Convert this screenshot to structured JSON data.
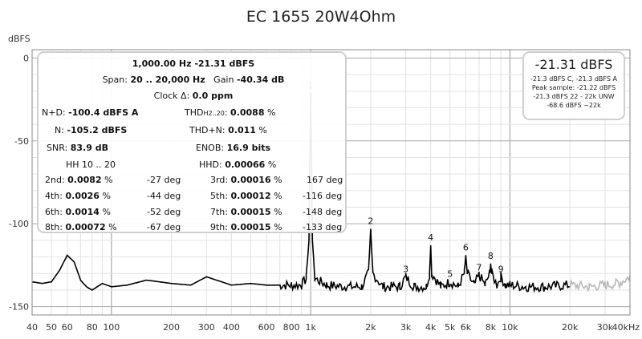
{
  "chart_data": {
    "type": "line",
    "title": "EC 1655 20W4Ohm",
    "ylabel": "dBFS",
    "xlabel": "",
    "x_scale": "log",
    "xlim": [
      40,
      40000
    ],
    "ylim": [
      -155,
      5
    ],
    "grid": true,
    "y_ticks": [
      0,
      -50,
      -100,
      -150
    ],
    "y_tick_labels": [
      "0",
      "-50",
      "-100",
      "-150"
    ],
    "x_ticks": [
      40,
      50,
      60,
      80,
      100,
      200,
      300,
      400,
      600,
      800,
      1000,
      2000,
      3000,
      4000,
      5000,
      6000,
      8000,
      10000,
      20000,
      30000,
      40000
    ],
    "x_tick_labels": [
      "40",
      "50",
      "60",
      "80",
      "100",
      "200",
      "300",
      "400",
      "600",
      "800",
      "1k",
      "2k",
      "3k",
      "4k",
      "5k",
      "6k",
      "8k",
      "10k",
      "20k",
      "30k",
      "40kHz"
    ],
    "series": [
      {
        "color": "#000000",
        "points": [
          [
            40,
            -135
          ],
          [
            45,
            -136
          ],
          [
            50,
            -135
          ],
          [
            55,
            -128
          ],
          [
            60,
            -119
          ],
          [
            65,
            -123
          ],
          [
            70,
            -134
          ],
          [
            75,
            -138
          ],
          [
            80,
            -140
          ],
          [
            90,
            -136
          ],
          [
            100,
            -138
          ],
          [
            120,
            -137
          ],
          [
            150,
            -134
          ],
          [
            200,
            -136
          ],
          [
            250,
            -137
          ],
          [
            300,
            -132
          ],
          [
            400,
            -137
          ],
          [
            500,
            -136
          ],
          [
            600,
            -137
          ],
          [
            700,
            -137
          ],
          [
            800,
            -137
          ],
          [
            900,
            -137
          ],
          [
            950,
            -133
          ],
          [
            980,
            -110
          ],
          [
            990,
            -60
          ],
          [
            1000,
            -21.31
          ],
          [
            1010,
            -60
          ],
          [
            1020,
            -110
          ],
          [
            1050,
            -133
          ],
          [
            1200,
            -137
          ],
          [
            1500,
            -138
          ],
          [
            1800,
            -138
          ],
          [
            1950,
            -130
          ],
          [
            2000,
            -103
          ],
          [
            2050,
            -130
          ],
          [
            2300,
            -138
          ],
          [
            2800,
            -138
          ],
          [
            3000,
            -132
          ],
          [
            3300,
            -138
          ],
          [
            3800,
            -138
          ],
          [
            3950,
            -130
          ],
          [
            4000,
            -113
          ],
          [
            4050,
            -130
          ],
          [
            4500,
            -138
          ],
          [
            5000,
            -135
          ],
          [
            5500,
            -138
          ],
          [
            5900,
            -130
          ],
          [
            6000,
            -119
          ],
          [
            6100,
            -130
          ],
          [
            6600,
            -137
          ],
          [
            7000,
            -131
          ],
          [
            7500,
            -137
          ],
          [
            7900,
            -130
          ],
          [
            8000,
            -124
          ],
          [
            8100,
            -130
          ],
          [
            8600,
            -137
          ],
          [
            9000,
            -132
          ],
          [
            9500,
            -137
          ],
          [
            10000,
            -137
          ],
          [
            12000,
            -138
          ],
          [
            15000,
            -138
          ],
          [
            20000,
            -137
          ]
        ]
      },
      {
        "color": "#b8b8b8",
        "points": [
          [
            20000,
            -137
          ],
          [
            25000,
            -138
          ],
          [
            30000,
            -137
          ],
          [
            35000,
            -136
          ],
          [
            40000,
            -132
          ]
        ]
      }
    ],
    "harmonics": [
      {
        "label": "1",
        "freq": 1000,
        "level": -21.31
      },
      {
        "label": "2",
        "freq": 2000,
        "level": -103
      },
      {
        "label": "3",
        "freq": 3000,
        "level": -132
      },
      {
        "label": "4",
        "freq": 4000,
        "level": -113
      },
      {
        "label": "5",
        "freq": 5000,
        "level": -135
      },
      {
        "label": "6",
        "freq": 6000,
        "level": -119
      },
      {
        "label": "7",
        "freq": 7000,
        "level": -131
      },
      {
        "label": "8",
        "freq": 8000,
        "level": -124
      },
      {
        "label": "9",
        "freq": 9000,
        "level": -132
      }
    ]
  },
  "stats": {
    "line1": "1,000.00 Hz  -21.31 dBFS",
    "span_label": "Span: ",
    "span_value": "20 .. 20,000 Hz",
    "gain_label": "Gain ",
    "gain_value": "-40.34 dB",
    "clock_label": "Clock Δ: ",
    "clock_value": "0.0 ppm",
    "nd_label": "N+D: ",
    "nd_value": "-100.4 dBFS A",
    "thd_label": "THD",
    "thd_sub": "H2..20",
    "thd_colon": ": ",
    "thd_value": "0.0088",
    "thd_unit": " %",
    "n_label": "N: ",
    "n_value": "-105.2 dBFS",
    "thdn_label": "THD+N: ",
    "thdn_value": "0.011",
    "thdn_unit": " %",
    "snr_label": "SNR: ",
    "snr_value": "83.9 dB",
    "enob_label": "ENOB: ",
    "enob_value": "16.9 bits",
    "hh_label": "HH 10 .. 20",
    "hhd_label": "HHD: ",
    "hhd_value": "0.00066",
    "hhd_unit": " %",
    "harmonics": [
      {
        "l1": "2nd: ",
        "v1": "0.0082",
        "u1": " %",
        "d1": "-27 deg",
        "l2": "3rd: ",
        "v2": "0.00016",
        "u2": " %",
        "d2": "167 deg"
      },
      {
        "l1": "4th: ",
        "v1": "0.0026",
        "u1": " %",
        "d1": "-44 deg",
        "l2": "5th: ",
        "v2": "0.00012",
        "u2": " %",
        "d2": "-116 deg"
      },
      {
        "l1": "6th: ",
        "v1": "0.0014",
        "u1": " %",
        "d1": "-52 deg",
        "l2": "7th: ",
        "v2": "0.00015",
        "u2": " %",
        "d2": "-148 deg"
      },
      {
        "l1": "8th: ",
        "v1": "0.00072",
        "u1": " %",
        "d1": "-67 deg",
        "l2": "9th: ",
        "v2": "0.00015",
        "u2": " %",
        "d2": "-133 deg"
      }
    ]
  },
  "meter": {
    "big": "-21.31 dBFS",
    "line1": "-21.3 dBFS C, -21.3 dBFS A",
    "line2": "Peak sample: -21.22 dBFS",
    "line3": "-21.3 dBFS 22 - 22k UNW",
    "line4": "-68.6 dBFS ~22k"
  }
}
